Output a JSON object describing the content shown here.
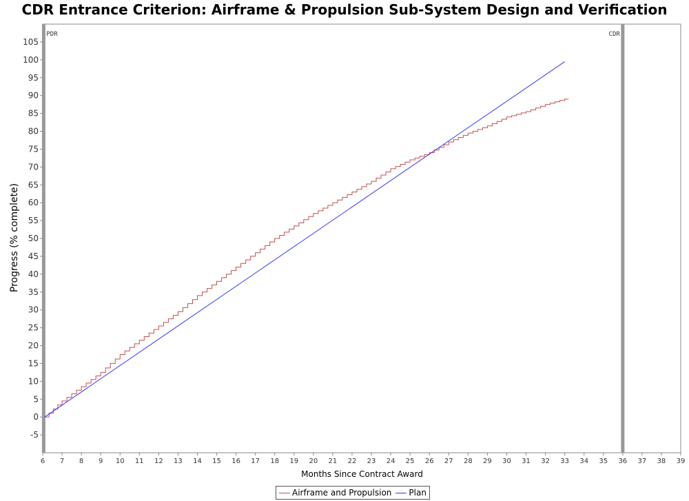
{
  "chart_data": {
    "type": "line",
    "title": "CDR Entrance Criterion: Airframe & Propulsion Sub-System Design and Verification",
    "xlabel": "Months Since Contract Award",
    "ylabel": "Progress (% complete)",
    "xlim": [
      6,
      39
    ],
    "ylim": [
      -10,
      110
    ],
    "xticks": [
      6,
      7,
      8,
      9,
      10,
      11,
      12,
      13,
      14,
      15,
      16,
      17,
      18,
      19,
      20,
      21,
      22,
      23,
      24,
      25,
      26,
      27,
      28,
      29,
      30,
      31,
      32,
      33,
      34,
      35,
      36,
      37,
      38,
      39
    ],
    "yticks": [
      -5,
      0,
      5,
      10,
      15,
      20,
      25,
      30,
      35,
      40,
      45,
      50,
      55,
      60,
      65,
      70,
      75,
      80,
      85,
      90,
      95,
      100,
      105
    ],
    "grid": false,
    "legend_position": "bottom-center",
    "markers": [
      {
        "label": "PDR",
        "x": 6.05
      },
      {
        "label": "CDR",
        "x": 36
      }
    ],
    "series": [
      {
        "name": "Airframe and Propulsion",
        "color": "#c0504d",
        "step": true,
        "x": [
          6.1,
          7,
          8,
          9,
          10,
          11,
          12,
          13,
          14,
          15,
          16,
          17,
          18,
          19,
          20,
          21,
          22,
          23,
          24,
          25,
          26,
          27,
          28,
          29,
          30,
          31,
          32,
          33,
          33.2
        ],
        "y": [
          0,
          4.5,
          8.5,
          12.5,
          17.5,
          21.5,
          25.5,
          29.5,
          34,
          38,
          42,
          46,
          50,
          53.5,
          57,
          60,
          63,
          66,
          69.5,
          72,
          74,
          77,
          79.5,
          81.5,
          84,
          85.5,
          87.5,
          89,
          89
        ]
      },
      {
        "name": "Plan",
        "color": "#3333ff",
        "step": false,
        "x": [
          6.1,
          33
        ],
        "y": [
          0,
          99.5
        ]
      }
    ]
  },
  "legend": {
    "items": [
      {
        "label": "Airframe and Propulsion",
        "color": "#c0504d"
      },
      {
        "label": "Plan",
        "color": "#3333ff"
      }
    ]
  }
}
